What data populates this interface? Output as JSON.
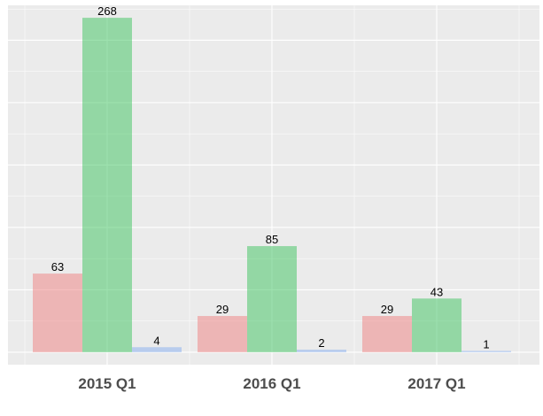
{
  "chart_data": {
    "type": "bar",
    "categories": [
      "2015 Q1",
      "2016 Q1",
      "2017 Q1"
    ],
    "series": [
      {
        "color": "#f08080",
        "values": [
          63,
          29,
          29
        ]
      },
      {
        "color": "#3cc35e",
        "values": [
          268,
          85,
          43
        ]
      },
      {
        "color": "#86aef0",
        "values": [
          4,
          2,
          1
        ]
      }
    ],
    "ylim": [
      -10,
      278
    ],
    "bar_alpha": 0.5,
    "grid": true,
    "legend": "none",
    "panel_background": "#ebebeb",
    "grid_color": "#ffffff",
    "title": "",
    "xlabel": "",
    "ylabel": ""
  }
}
